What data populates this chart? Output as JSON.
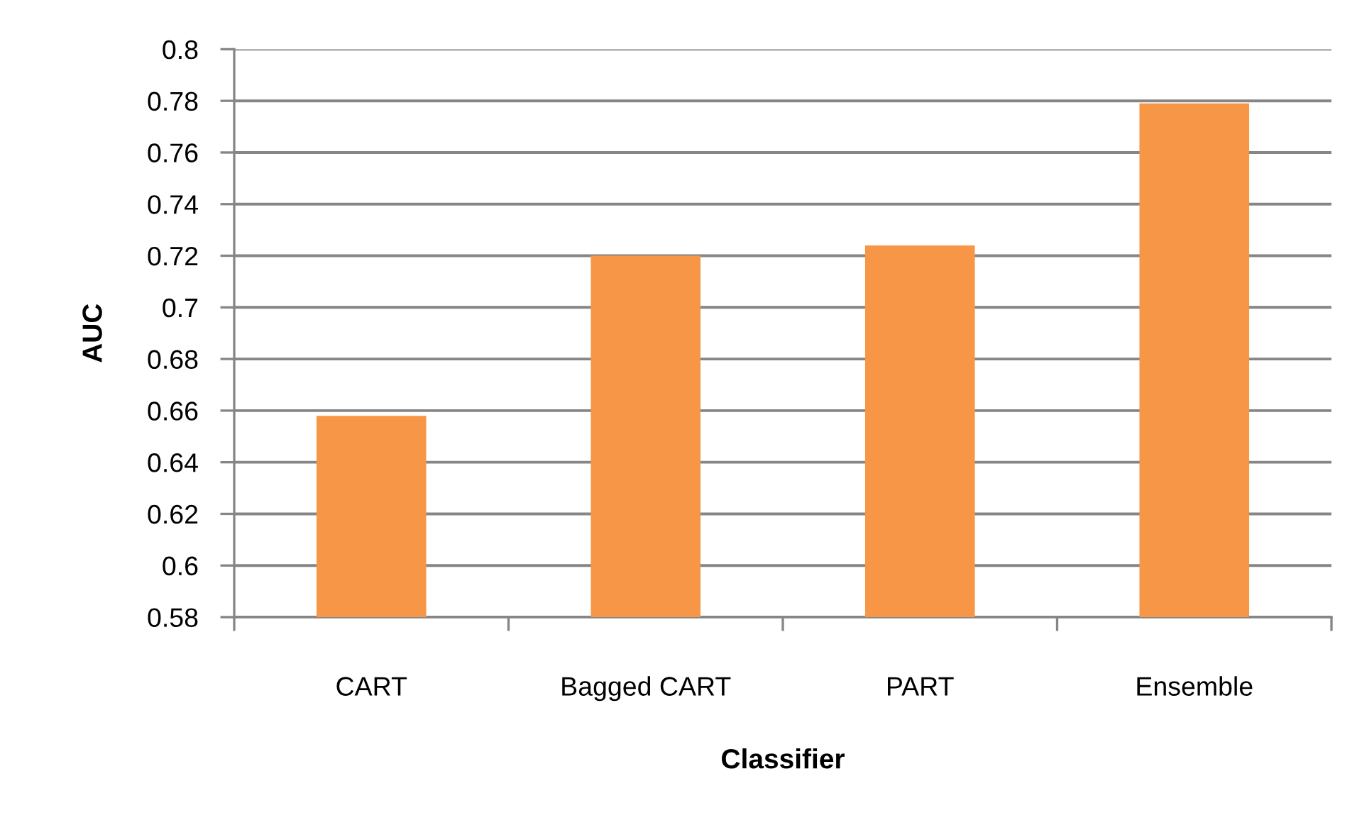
{
  "chart_data": {
    "type": "bar",
    "categories": [
      "CART",
      "Bagged CART",
      "PART",
      "Ensemble"
    ],
    "values": [
      0.658,
      0.72,
      0.724,
      0.779
    ],
    "color": "#f79646",
    "xlabel": "Classifier",
    "ylabel": "AUC",
    "ylim": [
      0.58,
      0.8
    ],
    "yticks": [
      0.58,
      0.6,
      0.62,
      0.64,
      0.66,
      0.68,
      0.7,
      0.72,
      0.74,
      0.76,
      0.78,
      0.8
    ],
    "grid": "y"
  }
}
